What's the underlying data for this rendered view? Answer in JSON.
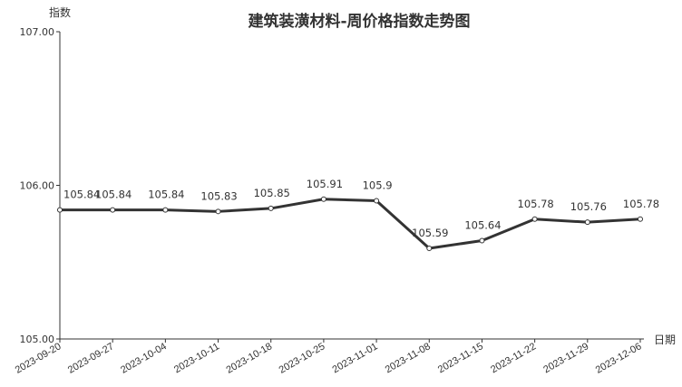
{
  "chart_data": {
    "type": "line",
    "title": "建筑装潢材料-周价格指数走势图",
    "xlabel": "日期",
    "ylabel": "指数",
    "ylim": [
      105,
      107
    ],
    "yticks": [
      "105.00",
      "106.00",
      "107.00"
    ],
    "grid": false,
    "categories": [
      "2023-09-20",
      "2023-09-27",
      "2023-10-04",
      "2023-10-11",
      "2023-10-18",
      "2023-10-25",
      "2023-11-01",
      "2023-11-08",
      "2023-11-15",
      "2023-11-22",
      "2023-11-29",
      "2023-12-06"
    ],
    "values": [
      105.84,
      105.84,
      105.84,
      105.83,
      105.85,
      105.91,
      105.9,
      105.59,
      105.64,
      105.78,
      105.76,
      105.78
    ],
    "data_labels": [
      "105.84",
      "105.84",
      "105.84",
      "105.83",
      "105.85",
      "105.91",
      "105.9",
      "105.59",
      "105.64",
      "105.78",
      "105.76",
      "105.78"
    ],
    "line_color": "#333333"
  }
}
